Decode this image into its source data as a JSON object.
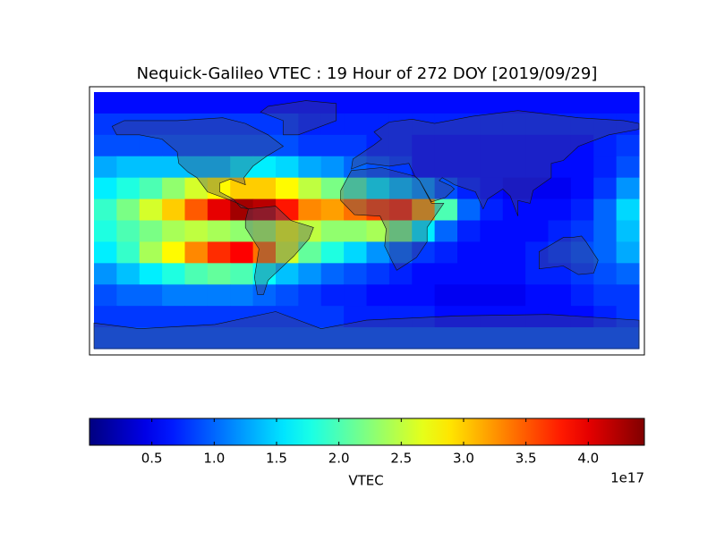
{
  "chart_data": {
    "type": "heatmap",
    "title": "Nequick-Galileo VTEC : 19 Hour of 272 DOY [2019/09/29]",
    "xlim": [
      -180,
      180
    ],
    "ylim": [
      -90,
      90
    ],
    "values": [
      [
        0.6,
        0.6,
        0.6,
        0.6,
        0.6,
        0.6,
        0.6,
        0.6,
        0.6,
        0.6,
        0.6,
        0.6,
        0.6,
        0.6,
        0.6,
        0.6,
        0.6,
        0.6,
        0.6,
        0.6,
        0.6,
        0.6,
        0.6,
        0.6
      ],
      [
        0.8,
        0.8,
        0.8,
        0.8,
        0.8,
        0.8,
        0.8,
        0.8,
        0.8,
        0.7,
        0.7,
        0.7,
        0.7,
        0.7,
        0.7,
        0.7,
        0.7,
        0.7,
        0.7,
        0.7,
        0.7,
        0.7,
        0.7,
        0.7
      ],
      [
        0.9,
        0.9,
        0.9,
        0.9,
        0.9,
        0.9,
        0.9,
        0.9,
        0.9,
        0.8,
        0.8,
        0.8,
        0.7,
        0.7,
        0.6,
        0.6,
        0.6,
        0.6,
        0.6,
        0.6,
        0.6,
        0.6,
        0.7,
        0.8
      ],
      [
        1.3,
        1.4,
        1.4,
        1.4,
        1.4,
        1.4,
        1.6,
        1.6,
        1.5,
        1.3,
        1.2,
        1.0,
        0.9,
        0.8,
        0.6,
        0.6,
        0.6,
        0.6,
        0.6,
        0.6,
        0.6,
        0.6,
        0.7,
        0.9
      ],
      [
        1.6,
        1.8,
        2.0,
        2.3,
        2.6,
        2.8,
        3.0,
        3.0,
        2.8,
        2.5,
        2.2,
        2.0,
        1.6,
        1.4,
        1.2,
        0.9,
        0.7,
        0.6,
        0.5,
        0.5,
        0.5,
        0.6,
        0.8,
        1.2
      ],
      [
        1.9,
        2.2,
        2.6,
        3.0,
        3.5,
        4.0,
        4.3,
        4.2,
        3.8,
        3.3,
        3.2,
        3.4,
        3.6,
        3.7,
        3.2,
        2.0,
        1.0,
        0.7,
        0.6,
        0.6,
        0.6,
        0.7,
        1.0,
        1.5
      ],
      [
        1.8,
        2.0,
        2.2,
        2.4,
        2.5,
        2.4,
        2.3,
        2.4,
        2.7,
        2.5,
        2.3,
        2.3,
        2.4,
        2.2,
        1.6,
        1.0,
        0.7,
        0.6,
        0.6,
        0.6,
        0.7,
        0.8,
        1.0,
        1.4
      ],
      [
        1.6,
        1.9,
        2.4,
        2.8,
        3.3,
        3.7,
        3.9,
        3.4,
        2.6,
        2.1,
        1.8,
        1.5,
        1.2,
        1.0,
        0.8,
        0.7,
        0.6,
        0.6,
        0.6,
        0.7,
        0.8,
        0.9,
        1.0,
        1.3
      ],
      [
        1.2,
        1.4,
        1.6,
        1.8,
        2.0,
        2.1,
        2.0,
        1.7,
        1.4,
        1.2,
        1.0,
        0.9,
        0.8,
        0.7,
        0.6,
        0.6,
        0.6,
        0.6,
        0.6,
        0.7,
        0.7,
        0.8,
        0.9,
        1.0
      ],
      [
        0.9,
        1.0,
        1.0,
        1.1,
        1.1,
        1.1,
        1.1,
        1.0,
        0.9,
        0.8,
        0.7,
        0.7,
        0.6,
        0.6,
        0.6,
        0.5,
        0.5,
        0.5,
        0.5,
        0.6,
        0.6,
        0.7,
        0.8,
        0.8
      ],
      [
        0.8,
        0.8,
        0.8,
        0.8,
        0.8,
        0.8,
        0.8,
        0.8,
        0.8,
        0.8,
        0.8,
        0.7,
        0.7,
        0.7,
        0.7,
        0.6,
        0.6,
        0.6,
        0.6,
        0.6,
        0.6,
        0.6,
        0.7,
        0.8
      ],
      [
        0.9,
        0.9,
        0.9,
        0.9,
        0.9,
        0.9,
        0.9,
        0.9,
        0.9,
        0.9,
        0.9,
        0.9,
        0.9,
        0.9,
        0.9,
        0.9,
        0.9,
        0.9,
        0.9,
        0.9,
        0.9,
        0.9,
        0.9,
        0.9
      ]
    ],
    "colormap": "jet",
    "clim": [
      0,
      4.45
    ],
    "colorbar_label": "VTEC",
    "colorbar_offset": "1e17",
    "cticks": [
      0.5,
      {
        "value": 1,
        "label": "1.0"
      },
      1.5,
      {
        "value": 2,
        "label": "2.0"
      },
      2.5,
      {
        "value": 3,
        "label": "3.0"
      },
      3.5,
      {
        "value": 4,
        "label": "4.0"
      }
    ]
  }
}
